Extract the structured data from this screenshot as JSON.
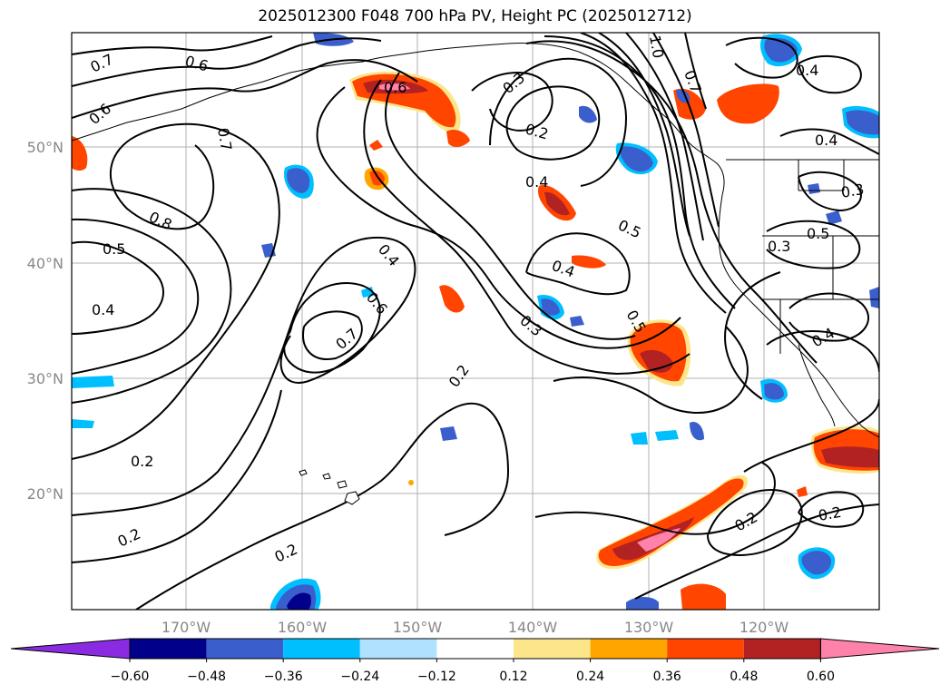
{
  "title": "2025012300 F048 700 hPa PV, Height PC (2025012712)",
  "map": {
    "lon_labels": [
      "170°W",
      "160°W",
      "150°W",
      "140°W",
      "130°W",
      "120°W"
    ],
    "lat_labels": [
      "50°N",
      "40°N",
      "30°N",
      "20°N"
    ],
    "contour_labels": [
      "0.7",
      "0.6",
      "0.6",
      "0.7",
      "0.6",
      "0.3",
      "0.2",
      "0.4",
      "0.8",
      "0.5",
      "0.4",
      "0.4",
      "0.6",
      "0.7",
      "0.3",
      "0.2",
      "0.4",
      "0.5",
      "0.5",
      "0.3",
      "0.5",
      "0.3",
      "0.2",
      "0.2",
      "0.2",
      "0.2",
      "0.2",
      "0.4",
      "0.4",
      "0.7",
      "1.0",
      "0.4"
    ]
  },
  "colorbar": {
    "ticks": [
      "−0.60",
      "−0.48",
      "−0.36",
      "−0.24",
      "−0.12",
      "0.12",
      "0.24",
      "0.36",
      "0.48",
      "0.60"
    ],
    "colors": [
      "#8a2be2",
      "#00008b",
      "#3a5fcd",
      "#00bfff",
      "#b0e2ff",
      "#ffffff",
      "#fde68a",
      "#ffa500",
      "#ff4500",
      "#b22222",
      "#ff82ab"
    ]
  },
  "colors": {
    "grid": "#b0b0b0",
    "coast": "#000000"
  }
}
